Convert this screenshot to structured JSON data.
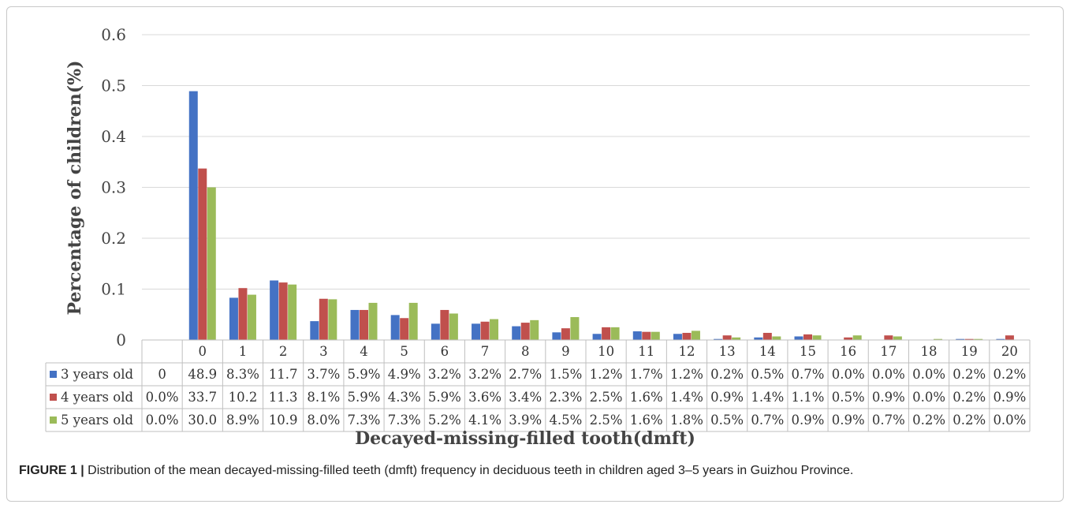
{
  "caption": {
    "label": "FIGURE 1 |",
    "text": "Distribution of the mean decayed-missing-filled teeth (dmft) frequency in deciduous teeth in children aged 3–5 years in Guizhou Province."
  },
  "chart_data": {
    "type": "bar",
    "ylabel": "Percentage of children(%)",
    "xlabel": "Decayed-missing-filled tooth(dmft)",
    "ylim": [
      0,
      0.6
    ],
    "yticks": [
      "0",
      "0.1",
      "0.2",
      "0.3",
      "0.4",
      "0.5",
      "0.6"
    ],
    "grid": true,
    "legend": "table-left",
    "categories": [
      "",
      "0",
      "1",
      "2",
      "3",
      "4",
      "5",
      "6",
      "7",
      "8",
      "9",
      "10",
      "11",
      "12",
      "13",
      "14",
      "15",
      "16",
      "17",
      "18",
      "19",
      "20"
    ],
    "series": [
      {
        "name": "3 years old",
        "color": "#4472c4",
        "values": [
          0,
          0.489,
          0.083,
          0.117,
          0.037,
          0.059,
          0.049,
          0.032,
          0.032,
          0.027,
          0.015,
          0.012,
          0.017,
          0.012,
          0.002,
          0.005,
          0.007,
          0.0,
          0.0,
          0.0,
          0.002,
          0.002
        ],
        "table_labels": [
          "0",
          "48.9",
          "8.3%",
          "11.7",
          "3.7%",
          "5.9%",
          "4.9%",
          "3.2%",
          "3.2%",
          "2.7%",
          "1.5%",
          "1.2%",
          "1.7%",
          "1.2%",
          "0.2%",
          "0.5%",
          "0.7%",
          "0.0%",
          "0.0%",
          "0.0%",
          "0.2%",
          "0.2%"
        ]
      },
      {
        "name": "4 years old",
        "color": "#c0504d",
        "values": [
          0,
          0.337,
          0.102,
          0.113,
          0.081,
          0.059,
          0.043,
          0.059,
          0.036,
          0.034,
          0.023,
          0.025,
          0.016,
          0.014,
          0.009,
          0.014,
          0.011,
          0.005,
          0.009,
          0.0,
          0.002,
          0.009
        ],
        "table_labels": [
          "0.0%",
          "33.7",
          "10.2",
          "11.3",
          "8.1%",
          "5.9%",
          "4.3%",
          "5.9%",
          "3.6%",
          "3.4%",
          "2.3%",
          "2.5%",
          "1.6%",
          "1.4%",
          "0.9%",
          "1.4%",
          "1.1%",
          "0.5%",
          "0.9%",
          "0.0%",
          "0.2%",
          "0.9%"
        ]
      },
      {
        "name": "5 years old",
        "color": "#9bbb59",
        "values": [
          0,
          0.3,
          0.089,
          0.109,
          0.08,
          0.073,
          0.073,
          0.052,
          0.041,
          0.039,
          0.045,
          0.025,
          0.016,
          0.018,
          0.005,
          0.007,
          0.009,
          0.009,
          0.007,
          0.002,
          0.002,
          0.0
        ],
        "table_labels": [
          "0.0%",
          "30.0",
          "8.9%",
          "10.9",
          "8.0%",
          "7.3%",
          "7.3%",
          "5.2%",
          "4.1%",
          "3.9%",
          "4.5%",
          "2.5%",
          "1.6%",
          "1.8%",
          "0.5%",
          "0.7%",
          "0.9%",
          "0.9%",
          "0.7%",
          "0.2%",
          "0.2%",
          "0.0%"
        ]
      }
    ]
  }
}
